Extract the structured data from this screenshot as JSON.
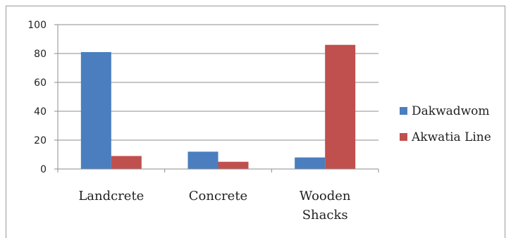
{
  "chart_data": {
    "type": "bar",
    "title": "",
    "xlabel": "",
    "ylabel": "",
    "categories": [
      [
        "Landcrete"
      ],
      [
        "Concrete"
      ],
      [
        "Wooden",
        "Shacks"
      ]
    ],
    "series": [
      {
        "name": "Dakwadwom",
        "color": "#4a7ebf",
        "values": [
          81,
          12,
          8
        ]
      },
      {
        "name": "Akwatia Line",
        "color": "#c0504d",
        "values": [
          9,
          5,
          86
        ]
      }
    ],
    "ylim": [
      0,
      100
    ],
    "yticks": [
      0,
      20,
      40,
      60,
      80,
      100
    ],
    "grid": true,
    "legend": "right"
  }
}
